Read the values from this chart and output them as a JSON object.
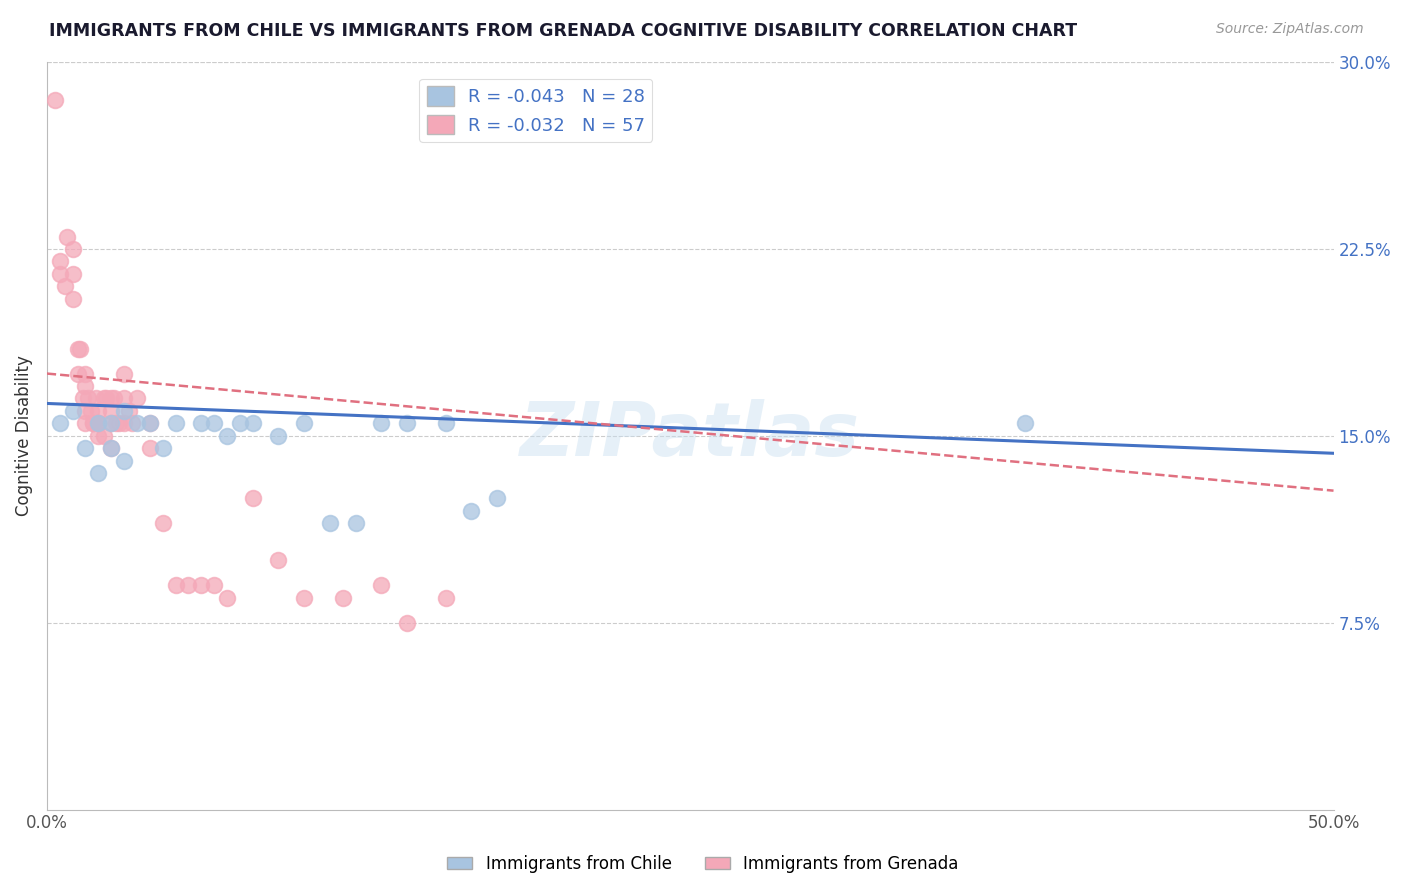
{
  "title": "IMMIGRANTS FROM CHILE VS IMMIGRANTS FROM GRENADA COGNITIVE DISABILITY CORRELATION CHART",
  "source_text": "Source: ZipAtlas.com",
  "ylabel": "Cognitive Disability",
  "xlim": [
    0.0,
    0.5
  ],
  "ylim": [
    0.0,
    0.3
  ],
  "xtick_labels": [
    "0.0%",
    "50.0%"
  ],
  "ytick_labels": [
    "7.5%",
    "15.0%",
    "22.5%",
    "30.0%"
  ],
  "ytick_positions": [
    0.075,
    0.15,
    0.225,
    0.3
  ],
  "xtick_positions": [
    0.0,
    0.5
  ],
  "grid_color": "#cccccc",
  "background_color": "#ffffff",
  "chile_color": "#a8c4e0",
  "grenada_color": "#f4a8b8",
  "chile_line_color": "#4472c4",
  "grenada_line_color": "#e07080",
  "R_chile": -0.043,
  "N_chile": 28,
  "R_grenada": -0.032,
  "N_grenada": 57,
  "legend_label_chile": "Immigrants from Chile",
  "legend_label_grenada": "Immigrants from Grenada",
  "watermark": "ZIPatlas",
  "chile_scatter_x": [
    0.005,
    0.01,
    0.015,
    0.02,
    0.02,
    0.025,
    0.025,
    0.03,
    0.03,
    0.035,
    0.04,
    0.045,
    0.05,
    0.06,
    0.065,
    0.07,
    0.075,
    0.08,
    0.09,
    0.1,
    0.11,
    0.12,
    0.13,
    0.14,
    0.155,
    0.165,
    0.175,
    0.38
  ],
  "chile_scatter_y": [
    0.155,
    0.16,
    0.145,
    0.155,
    0.135,
    0.155,
    0.145,
    0.16,
    0.14,
    0.155,
    0.155,
    0.145,
    0.155,
    0.155,
    0.155,
    0.15,
    0.155,
    0.155,
    0.15,
    0.155,
    0.115,
    0.115,
    0.155,
    0.155,
    0.155,
    0.12,
    0.125,
    0.155
  ],
  "grenada_scatter_x": [
    0.003,
    0.005,
    0.005,
    0.007,
    0.008,
    0.01,
    0.01,
    0.01,
    0.012,
    0.012,
    0.013,
    0.014,
    0.015,
    0.015,
    0.015,
    0.015,
    0.016,
    0.017,
    0.018,
    0.018,
    0.019,
    0.02,
    0.02,
    0.02,
    0.02,
    0.02,
    0.022,
    0.022,
    0.023,
    0.025,
    0.025,
    0.025,
    0.025,
    0.026,
    0.027,
    0.028,
    0.03,
    0.03,
    0.03,
    0.032,
    0.033,
    0.035,
    0.04,
    0.04,
    0.045,
    0.05,
    0.055,
    0.06,
    0.065,
    0.07,
    0.08,
    0.09,
    0.1,
    0.115,
    0.13,
    0.14,
    0.155
  ],
  "grenada_scatter_y": [
    0.285,
    0.22,
    0.215,
    0.21,
    0.23,
    0.225,
    0.215,
    0.205,
    0.185,
    0.175,
    0.185,
    0.165,
    0.175,
    0.17,
    0.16,
    0.155,
    0.165,
    0.16,
    0.155,
    0.155,
    0.165,
    0.155,
    0.155,
    0.16,
    0.155,
    0.15,
    0.165,
    0.15,
    0.165,
    0.165,
    0.16,
    0.155,
    0.145,
    0.165,
    0.155,
    0.155,
    0.175,
    0.165,
    0.155,
    0.16,
    0.155,
    0.165,
    0.155,
    0.145,
    0.115,
    0.09,
    0.09,
    0.09,
    0.09,
    0.085,
    0.125,
    0.1,
    0.085,
    0.085,
    0.09,
    0.075,
    0.085
  ],
  "chile_trend_x": [
    0.0,
    0.5
  ],
  "chile_trend_y": [
    0.163,
    0.143
  ],
  "grenada_trend_x": [
    0.0,
    0.5
  ],
  "grenada_trend_y": [
    0.175,
    0.128
  ]
}
